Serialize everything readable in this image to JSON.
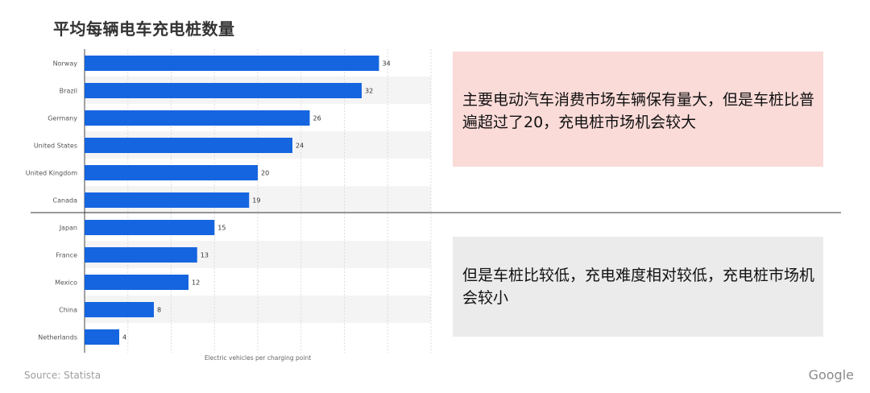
{
  "title": "平均每辆电车充电桩数量",
  "chart_data": {
    "type": "bar",
    "orientation": "horizontal",
    "categories": [
      "Norway",
      "Brazil",
      "Germany",
      "United States",
      "United Kingdom",
      "Canada",
      "Japan",
      "France",
      "Mexico",
      "China",
      "Netherlands"
    ],
    "values": [
      34,
      32,
      26,
      24,
      20,
      19,
      15,
      13,
      12,
      8,
      4
    ],
    "xlabel": "Electric vehicles per charging point",
    "xlim": [
      0,
      40
    ],
    "bar_color": "#1565e0",
    "grid": true,
    "data_labels": true
  },
  "notes": [
    "主要电动汽车消费市场车辆保有量大，但是车桩比普遍超过了20，充电桩市场机会较大",
    "但是车桩比较低，充电难度相对较低，充电桩市场机会较小"
  ],
  "footer": {
    "source": "Source: Statista",
    "brand": "Google"
  }
}
